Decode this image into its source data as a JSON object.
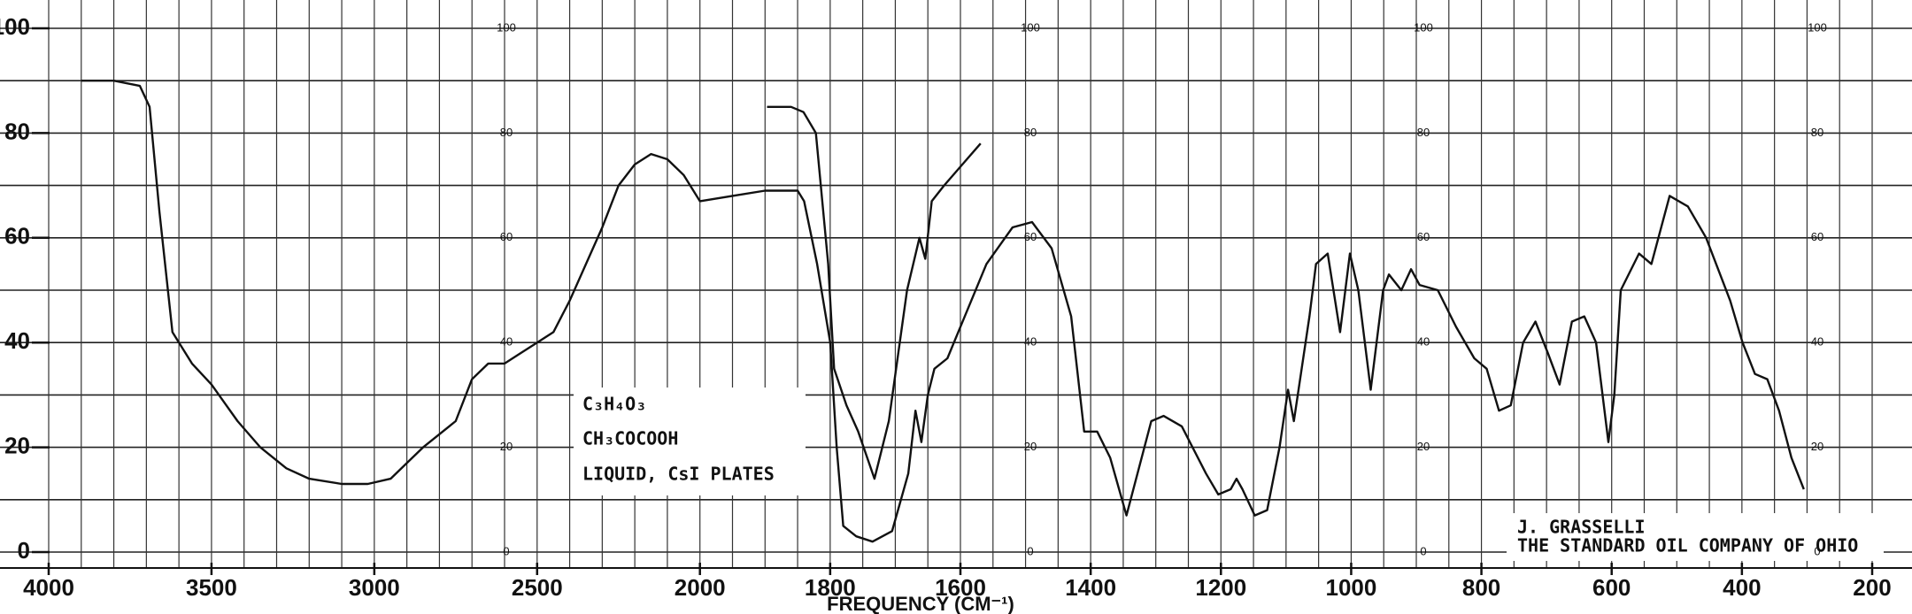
{
  "chart_data": {
    "type": "line",
    "xlabel": "FREQUENCY (CM⁻¹)",
    "xlim": [
      4000,
      200
    ],
    "xscale": {
      "break": 2000,
      "ratio": 2
    },
    "xticks": [
      4000,
      3500,
      3000,
      2500,
      2000,
      1800,
      1600,
      1400,
      1200,
      1000,
      800,
      600,
      400,
      200
    ],
    "ylim": [
      0,
      100
    ],
    "yticks": [
      0,
      20,
      40,
      60,
      80,
      100
    ],
    "inner_scale_ticks": [
      0,
      20,
      40,
      60,
      80,
      100
    ],
    "grid": true,
    "ygrid": [
      0,
      10,
      20,
      30,
      40,
      50,
      60,
      70,
      80,
      90,
      100
    ],
    "xgrid": [
      4000,
      3900,
      3800,
      3700,
      3600,
      3500,
      3400,
      3300,
      3200,
      3100,
      3000,
      2900,
      2800,
      2700,
      2600,
      2500,
      2400,
      2300,
      2200,
      2100,
      2000,
      1950,
      1900,
      1850,
      1800,
      1750,
      1700,
      1650,
      1600,
      1550,
      1500,
      1450,
      1400,
      1350,
      1300,
      1250,
      1200,
      1150,
      1100,
      1050,
      1000,
      950,
      900,
      850,
      800,
      750,
      700,
      650,
      600,
      550,
      500,
      450,
      400,
      350,
      300,
      250,
      200
    ],
    "annotations": [
      "C₃H₄O₃",
      "CH₃COCOOH",
      "LIQUID, CsI PLATES",
      "J. GRASSELLI",
      "THE STANDARD OIL COMPANY OF OHIO"
    ],
    "series": [
      {
        "color": "#111111",
        "x": [
          3900,
          3800,
          3720,
          3690,
          3660,
          3620,
          3560,
          3500,
          3420,
          3350,
          3270,
          3200,
          3100,
          3020,
          2950,
          2900,
          2850,
          2750,
          2700,
          2650,
          2600,
          2550,
          2500,
          2450,
          2400,
          2350,
          2300,
          2250,
          2200,
          2150,
          2100,
          2050,
          2000,
          1950,
          1900,
          1850,
          1840,
          1820,
          1800,
          1790,
          1780,
          1760,
          1735,
          1705,
          1680,
          1669,
          1660,
          1650,
          1640,
          1620,
          1600,
          1560,
          1520,
          1490,
          1460,
          1430,
          1410,
          1390,
          1370,
          1345,
          1307,
          1288,
          1260,
          1223,
          1204,
          1185,
          1176,
          1167,
          1148,
          1129,
          1110,
          1097,
          1088,
          1064,
          1054,
          1036,
          1017,
          1002,
          989,
          970,
          951,
          942,
          923,
          908,
          895,
          867,
          839,
          811,
          792,
          773,
          755,
          736,
          717,
          698,
          680,
          661,
          642,
          624,
          605,
          596,
          586,
          558,
          539,
          511,
          483,
          455,
          418,
          399,
          380,
          361,
          343,
          324,
          305
        ],
        "values": [
          90,
          90,
          89,
          85,
          65,
          42,
          36,
          32,
          25,
          20,
          16,
          14,
          13,
          13,
          14,
          17,
          20,
          25,
          33,
          36,
          36,
          38,
          40,
          42,
          48,
          55,
          62,
          70,
          74,
          76,
          75,
          72,
          67,
          68,
          69,
          69,
          67,
          55,
          40,
          20,
          5,
          3,
          2,
          4,
          15,
          27,
          21,
          30,
          35,
          37,
          43,
          55,
          62,
          63,
          58,
          45,
          23,
          23,
          18,
          7,
          25,
          26,
          24,
          15,
          11,
          12,
          14,
          12,
          7,
          8,
          20,
          31,
          25,
          45,
          55,
          57,
          42,
          57,
          50,
          31,
          50,
          53,
          50,
          54,
          51,
          50,
          43,
          37,
          35,
          27,
          28,
          40,
          44,
          38,
          32,
          44,
          45,
          40,
          21,
          30,
          50,
          57,
          55,
          68,
          66,
          60,
          48,
          40,
          34,
          33,
          27,
          18,
          12
        ]
      },
      {
        "color": "#111111",
        "x": [
          1897,
          1860,
          1841,
          1822,
          1803,
          1794,
          1775,
          1757,
          1732,
          1710,
          1682,
          1663,
          1654,
          1644,
          1625,
          1597,
          1569
        ],
        "values": [
          85,
          85,
          84,
          80,
          55,
          35,
          28,
          23,
          14,
          25,
          50,
          60,
          56,
          67,
          70,
          74,
          78
        ]
      }
    ]
  }
}
